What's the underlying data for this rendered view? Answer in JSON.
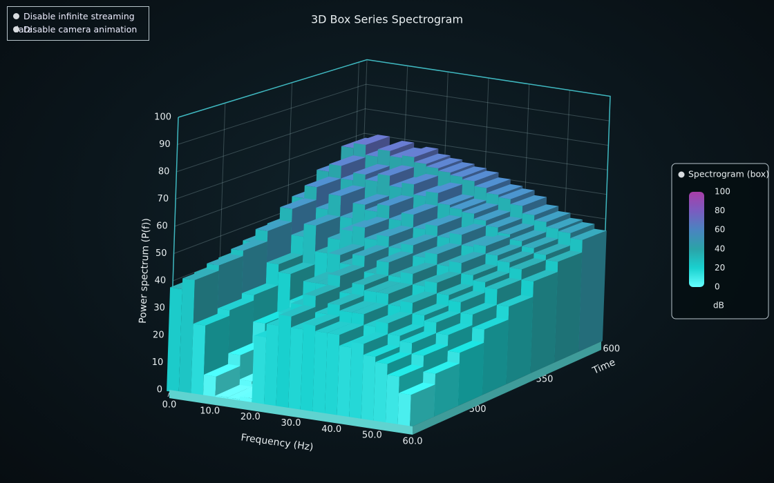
{
  "controls": [
    "Disable infinite streaming data",
    "Disable camera animation"
  ],
  "chart_data": {
    "type": "box3d",
    "title": "3D Box Series Spectrogram",
    "x_label": "Frequency (Hz)",
    "y_label": "Power spectrum (P(f))",
    "z_label": "Time",
    "xlim": [
      0,
      60
    ],
    "xticks": [
      {
        "value": 0,
        "label": "0.0"
      },
      {
        "value": 10,
        "label": "10.0"
      },
      {
        "value": 20,
        "label": "20.0"
      },
      {
        "value": 30,
        "label": "30.0"
      },
      {
        "value": 40,
        "label": "40.0"
      },
      {
        "value": 50,
        "label": "50.0"
      },
      {
        "value": 60,
        "label": "60.0"
      }
    ],
    "ylim": [
      0,
      100
    ],
    "yticks": [
      0,
      10,
      20,
      30,
      40,
      50,
      60,
      70,
      80,
      90,
      100
    ],
    "zlim": [
      465,
      606
    ],
    "zticks": [
      500,
      550,
      600
    ],
    "grid": true,
    "x": [
      1.5,
      4.5,
      7.5,
      10.5,
      13.5,
      16.5,
      19.5,
      22.5,
      25.5,
      28.5,
      31.5,
      34.5,
      37.5,
      40.5,
      43.5,
      46.5,
      49.5,
      52.5,
      55.5,
      58.5
    ],
    "z": [
      472,
      490,
      508,
      526,
      544,
      562,
      580,
      598
    ],
    "values": [
      [
        38,
        42,
        26,
        8,
        1,
        1,
        2,
        25,
        30,
        34,
        30,
        32,
        30,
        30,
        26,
        28,
        24,
        22,
        18,
        12
      ],
      [
        40,
        44,
        28,
        12,
        3,
        2,
        5,
        30,
        34,
        38,
        32,
        36,
        34,
        34,
        30,
        32,
        28,
        26,
        22,
        16
      ],
      [
        42,
        46,
        30,
        20,
        8,
        5,
        15,
        38,
        38,
        42,
        36,
        40,
        38,
        38,
        34,
        36,
        32,
        30,
        26,
        20
      ],
      [
        45,
        50,
        38,
        35,
        25,
        20,
        35,
        45,
        42,
        46,
        40,
        45,
        40,
        42,
        38,
        40,
        36,
        34,
        30,
        25
      ],
      [
        48,
        55,
        45,
        50,
        40,
        46,
        50,
        52,
        48,
        50,
        46,
        48,
        44,
        46,
        42,
        44,
        40,
        38,
        36,
        30
      ],
      [
        55,
        60,
        52,
        58,
        50,
        56,
        54,
        57,
        52,
        55,
        50,
        52,
        48,
        50,
        46,
        47,
        44,
        42,
        40,
        36
      ],
      [
        62,
        65,
        60,
        63,
        61,
        64,
        60,
        62,
        58,
        60,
        56,
        55,
        54,
        52,
        50,
        48,
        46,
        44,
        42,
        40
      ],
      [
        68,
        70,
        66,
        69,
        67,
        68,
        66,
        65,
        64,
        63,
        62,
        60,
        58,
        57,
        55,
        52,
        50,
        48,
        47,
        45
      ]
    ],
    "legend": {
      "title": "Spectrogram (box)",
      "unit": "dB",
      "position": "right",
      "ticks": [
        0,
        20,
        40,
        60,
        80,
        100
      ],
      "colors": [
        "#66ffff",
        "#19d1cf",
        "#2ba3a8",
        "#4a84c0",
        "#7a5cc0",
        "#a83ea8"
      ]
    }
  }
}
